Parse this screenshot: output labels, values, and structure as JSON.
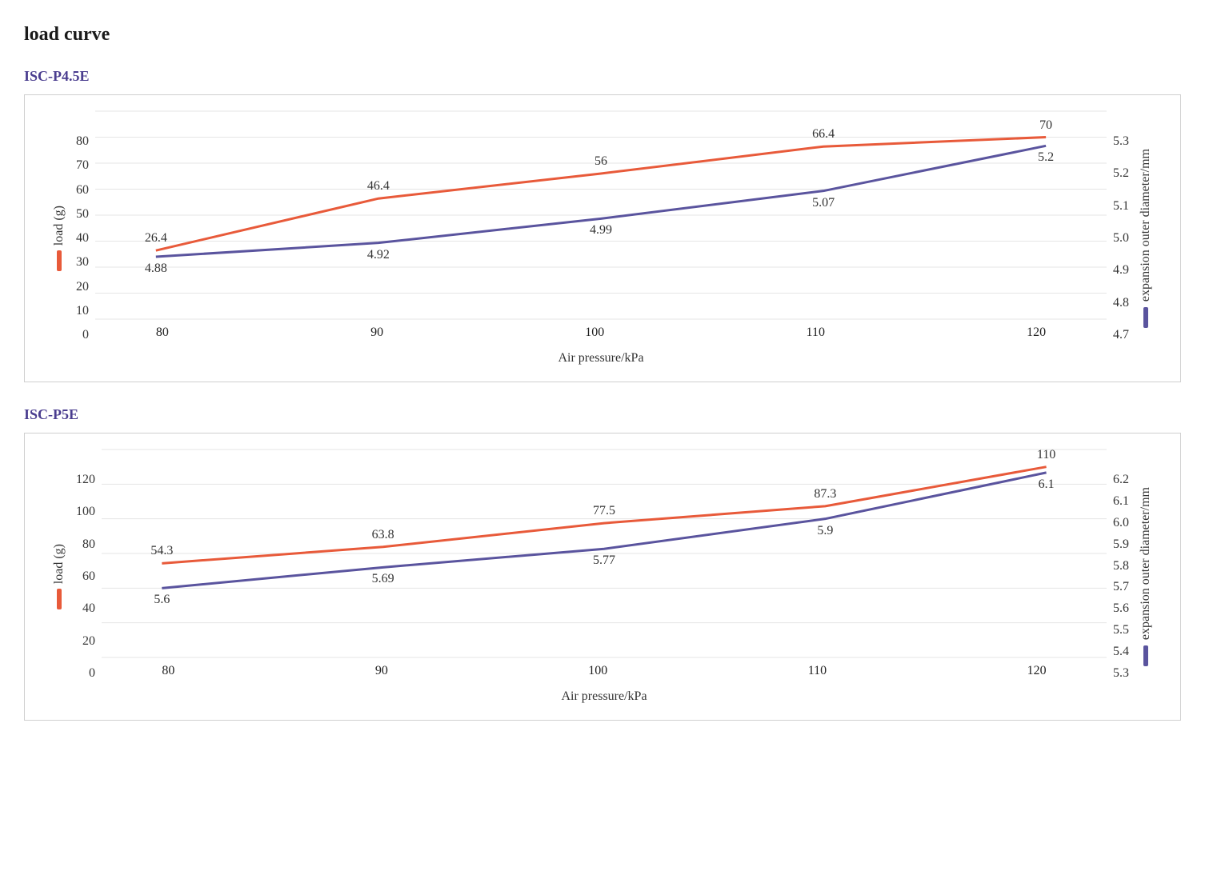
{
  "page_title": "load curve",
  "charts": [
    {
      "title": "ISC-P4.5E",
      "x_label": "Air pressure/kPa",
      "y_left_label": "load (g)",
      "y_right_label": "expansion outer diameter/mm",
      "x_categories": [
        "80",
        "90",
        "100",
        "110",
        "120"
      ],
      "y_left": {
        "min": 0,
        "max": 80,
        "step": 10,
        "ticks": [
          "80",
          "70",
          "60",
          "50",
          "40",
          "30",
          "20",
          "10",
          "0"
        ]
      },
      "y_right": {
        "min": 4.7,
        "max": 5.3,
        "step": 0.1,
        "ticks": [
          "5.3",
          "5.2",
          "5.1",
          "5.0",
          "4.9",
          "4.8",
          "4.7"
        ]
      },
      "series": [
        {
          "name": "load",
          "axis": "left",
          "color": "#e85a3a",
          "line_width": 3,
          "values": [
            26.4,
            46.4,
            56,
            66.4,
            70
          ],
          "labels": [
            "26.4",
            "46.4",
            "56",
            "66.4",
            "70"
          ],
          "label_pos": "above"
        },
        {
          "name": "diameter",
          "axis": "right",
          "color": "#5a549e",
          "line_width": 3,
          "values": [
            4.88,
            4.92,
            4.99,
            5.07,
            5.2
          ],
          "labels": [
            "4.88",
            "4.92",
            "4.99",
            "5.07",
            "5.2"
          ],
          "label_pos": "below"
        }
      ],
      "grid_color": "#e5e5e5",
      "background_color": "#ffffff",
      "font_size": 16
    },
    {
      "title": "ISC-P5E",
      "x_label": "Air pressure/kPa",
      "y_left_label": "load (g)",
      "y_right_label": "expansion outer diameter/mm",
      "x_categories": [
        "80",
        "90",
        "100",
        "110",
        "120"
      ],
      "y_left": {
        "min": 0,
        "max": 120,
        "step": 20,
        "ticks": [
          "120",
          "100",
          "80",
          "60",
          "40",
          "20",
          "0"
        ]
      },
      "y_right": {
        "min": 5.3,
        "max": 6.2,
        "step": 0.1,
        "ticks": [
          "6.2",
          "6.1",
          "6.0",
          "5.9",
          "5.8",
          "5.7",
          "5.6",
          "5.5",
          "5.4",
          "5.3"
        ]
      },
      "series": [
        {
          "name": "load",
          "axis": "left",
          "color": "#e85a3a",
          "line_width": 3,
          "values": [
            54.3,
            63.8,
            77.5,
            87.3,
            110
          ],
          "labels": [
            "54.3",
            "63.8",
            "77.5",
            "87.3",
            "110"
          ],
          "label_pos": "above"
        },
        {
          "name": "diameter",
          "axis": "right",
          "color": "#5a549e",
          "line_width": 3,
          "values": [
            5.6,
            5.69,
            5.77,
            5.9,
            6.1
          ],
          "labels": [
            "5.6",
            "5.69",
            "5.77",
            "5.9",
            "6.1"
          ],
          "label_pos": "below"
        }
      ],
      "grid_color": "#e5e5e5",
      "background_color": "#ffffff",
      "font_size": 16
    }
  ]
}
